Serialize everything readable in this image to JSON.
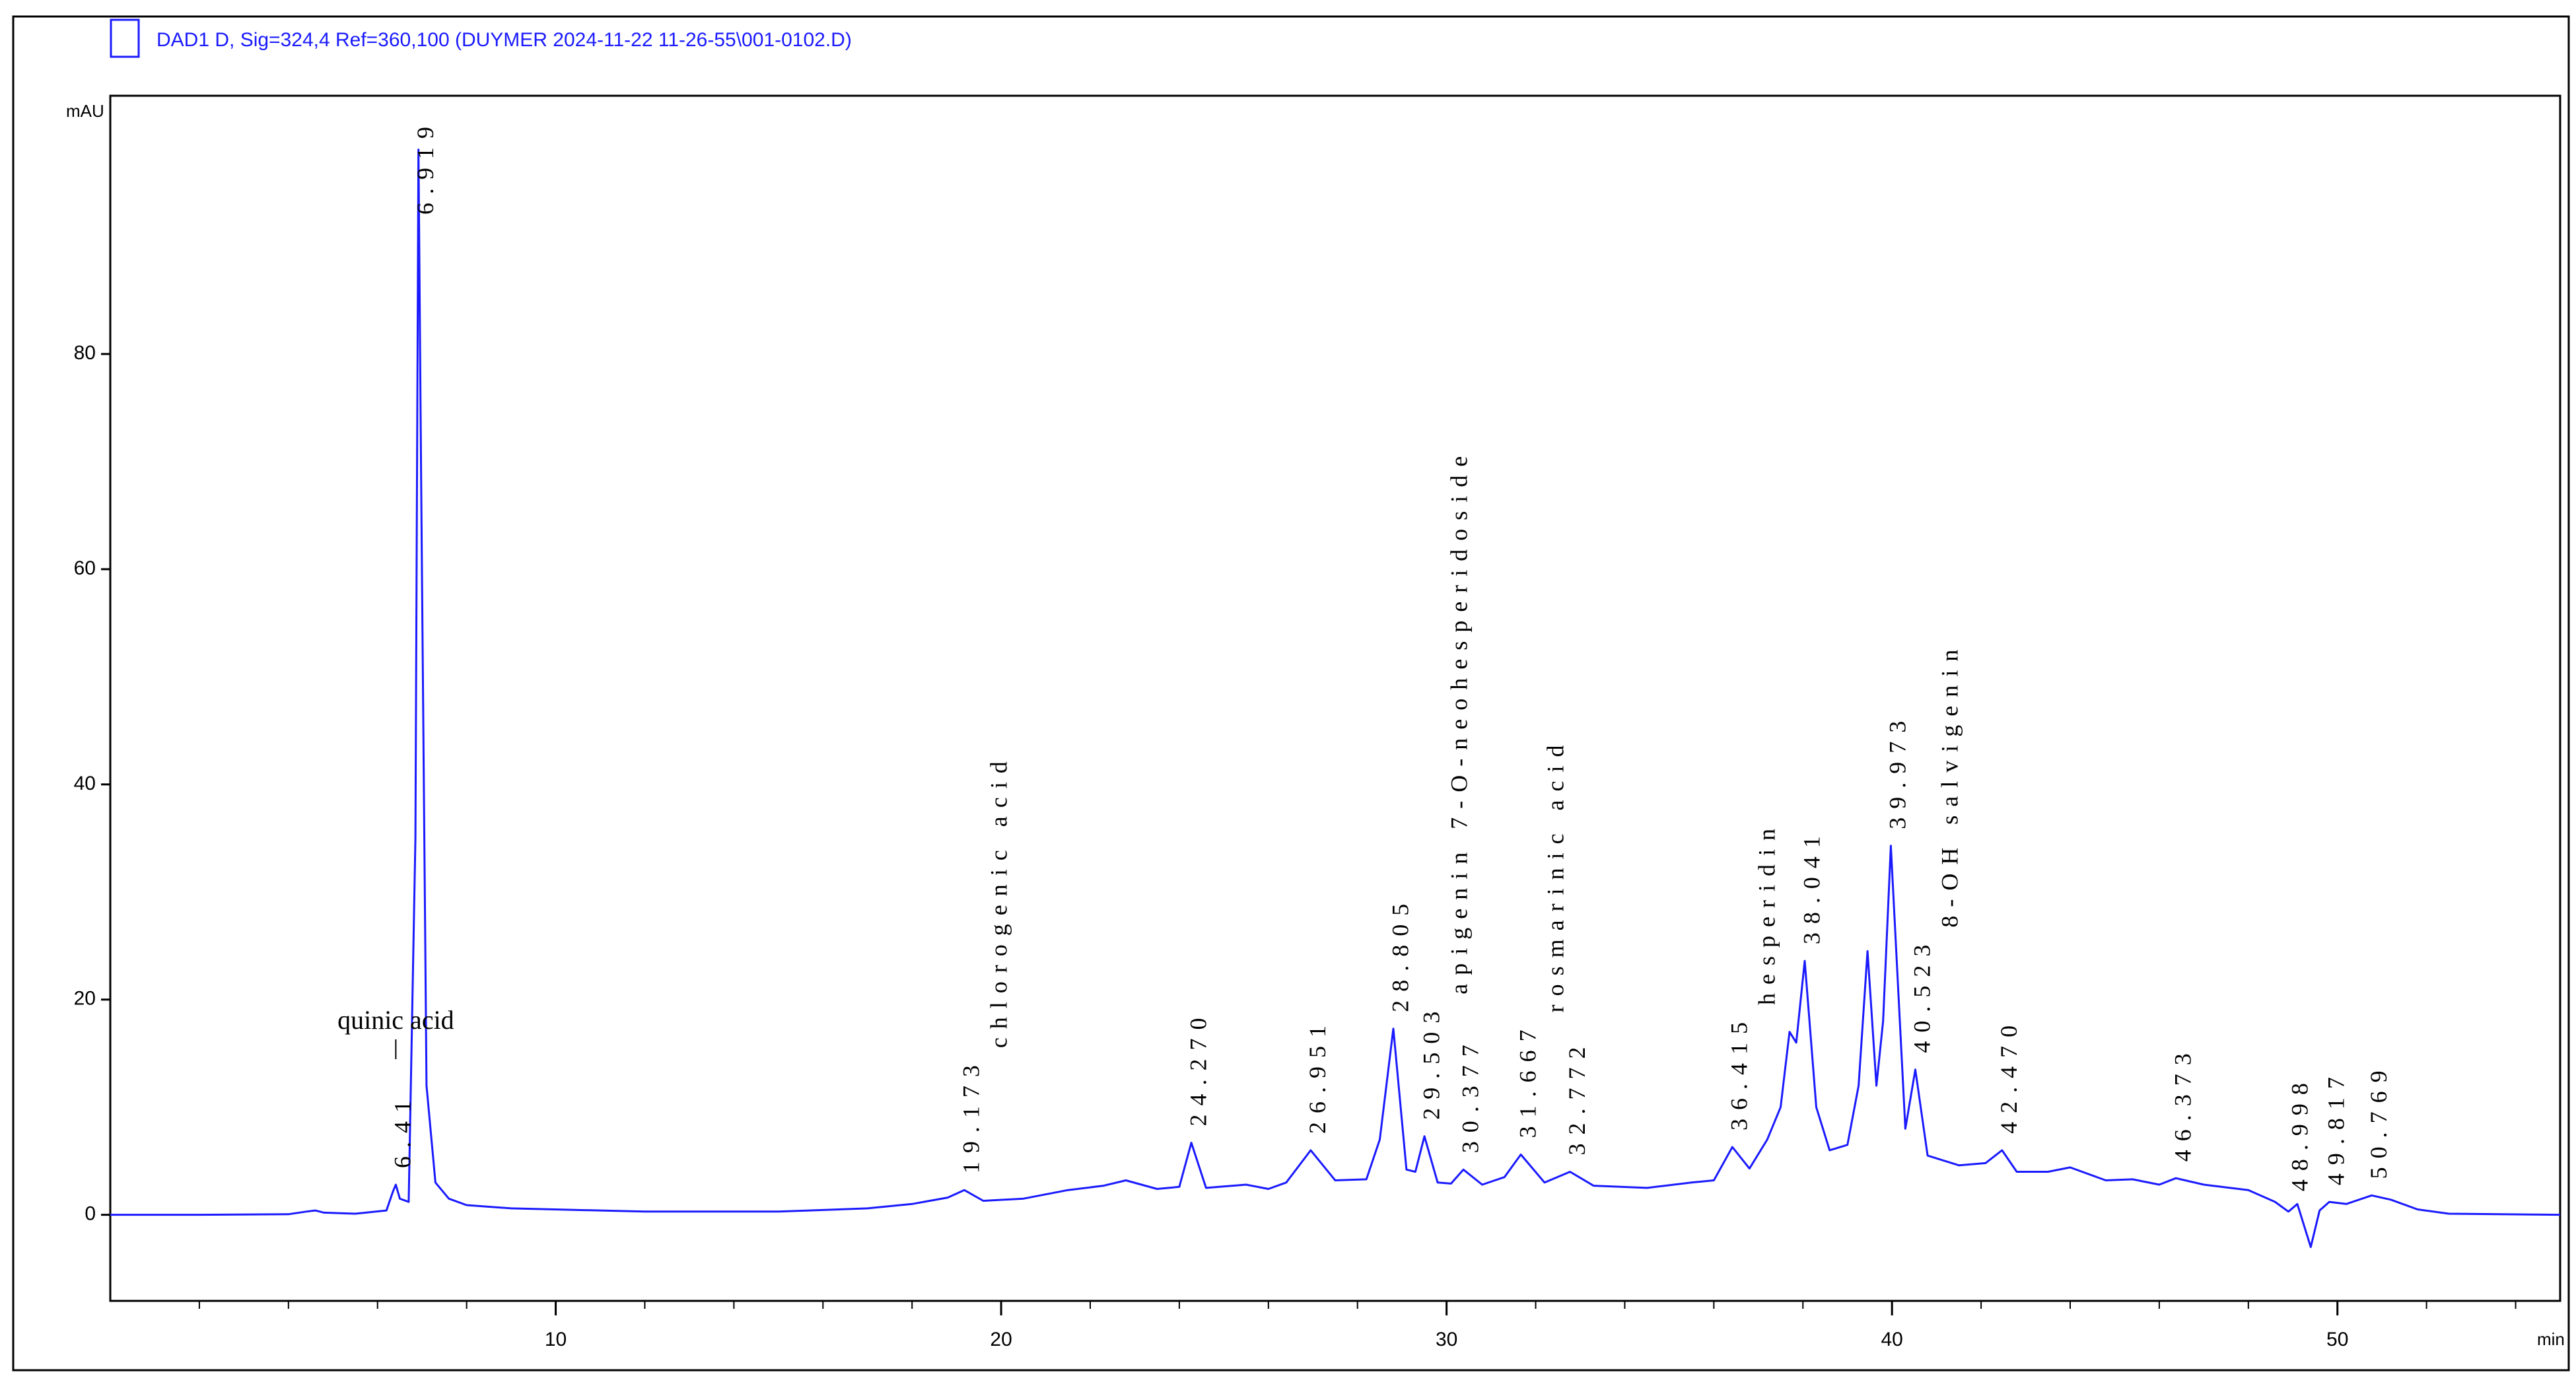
{
  "chart_data": {
    "type": "line",
    "y_label": "mAU",
    "x_label": "min",
    "xlim": [
      0,
      55
    ],
    "ylim": [
      -8,
      104
    ],
    "xticks": [
      10,
      20,
      30,
      40,
      50
    ],
    "yticks": [
      0,
      20,
      40,
      60,
      80
    ],
    "x": [
      0,
      2,
      4,
      4.4,
      4.6,
      4.8,
      5.5,
      6.2,
      6.35,
      6.41,
      6.5,
      6.7,
      6.85,
      6.919,
      6.98,
      7.1,
      7.3,
      7.6,
      8,
      9,
      12,
      15,
      17,
      18,
      18.8,
      19.173,
      19.6,
      20.5,
      21.5,
      22.3,
      22.8,
      23.5,
      24,
      24.27,
      24.6,
      25.5,
      26,
      26.4,
      26.95,
      27.5,
      28.2,
      28.5,
      28.805,
      29.1,
      29.3,
      29.503,
      29.8,
      30.1,
      30.377,
      30.8,
      31.3,
      31.667,
      32.2,
      32.772,
      33.3,
      34.5,
      35.5,
      36,
      36.415,
      36.8,
      37.2,
      37.5,
      37.7,
      37.85,
      38.041,
      38.3,
      38.6,
      39,
      39.25,
      39.45,
      39.65,
      39.8,
      39.973,
      40.3,
      40.523,
      40.8,
      41.5,
      42.1,
      42.47,
      42.8,
      43.5,
      44,
      44.8,
      45.4,
      46,
      46.373,
      47,
      48,
      48.6,
      48.9,
      49.1,
      49.4,
      49.6,
      49.817,
      50.2,
      50.769,
      51.2,
      51.8,
      52.5,
      55
    ],
    "series": [
      {
        "name": "DAD1 D, Sig=324,4 Ref=360,100 (DUYMER 2024-11-22 11-26-55\\001-0102.D)",
        "color": "#1a1aff",
        "values": [
          0,
          0,
          0.05,
          0.3,
          0.4,
          0.2,
          0.1,
          0.4,
          2.2,
          2.8,
          1.5,
          1.2,
          35,
          99,
          68,
          12,
          3,
          1.5,
          0.9,
          0.6,
          0.3,
          0.3,
          0.6,
          1,
          1.6,
          2.3,
          1.3,
          1.5,
          2.3,
          2.7,
          3.2,
          2.4,
          2.6,
          6.7,
          2.5,
          2.8,
          2.4,
          3,
          6,
          3.2,
          3.3,
          7,
          17.3,
          4.2,
          4,
          7.3,
          3,
          2.9,
          4.2,
          2.8,
          3.5,
          5.6,
          3,
          4,
          2.7,
          2.5,
          3,
          3.2,
          6.3,
          4.3,
          7,
          10,
          17,
          16,
          23.6,
          10,
          6,
          6.5,
          12,
          24.5,
          12,
          18,
          34.3,
          8,
          13.5,
          5.5,
          4.6,
          4.8,
          6,
          4,
          4,
          4.4,
          3.2,
          3.3,
          2.8,
          3.4,
          2.8,
          2.3,
          1.2,
          0.3,
          1,
          -3,
          0.4,
          1.2,
          1,
          1.8,
          1.4,
          0.5,
          0.1,
          0
        ]
      }
    ],
    "peaks": [
      {
        "rt": 6.41,
        "name": "quinic acid"
      },
      {
        "rt": 6.919
      },
      {
        "rt": 19.173,
        "name": "chlorogenic acid"
      },
      {
        "rt": {
          "value": 24.27,
          "label": "24.270"
        }
      },
      {
        "rt": 26.951
      },
      {
        "rt": 28.805
      },
      {
        "rt": 29.503,
        "name": "apigenin 7-O-neohesperidoside"
      },
      {
        "rt": 30.377
      },
      {
        "rt": 31.667,
        "name": "rosmarinic acid"
      },
      {
        "rt": 32.772
      },
      {
        "rt": 36.415,
        "name": "hesperidin"
      },
      {
        "rt": 38.041
      },
      {
        "rt": 39.973
      },
      {
        "rt": 40.523,
        "name": "8-OH salvigenin"
      },
      {
        "rt": {
          "value": 42.47,
          "label": "42.470"
        }
      },
      {
        "rt": 46.373
      },
      {
        "rt": 48.998
      },
      {
        "rt": 49.817
      },
      {
        "rt": 50.769
      }
    ]
  }
}
